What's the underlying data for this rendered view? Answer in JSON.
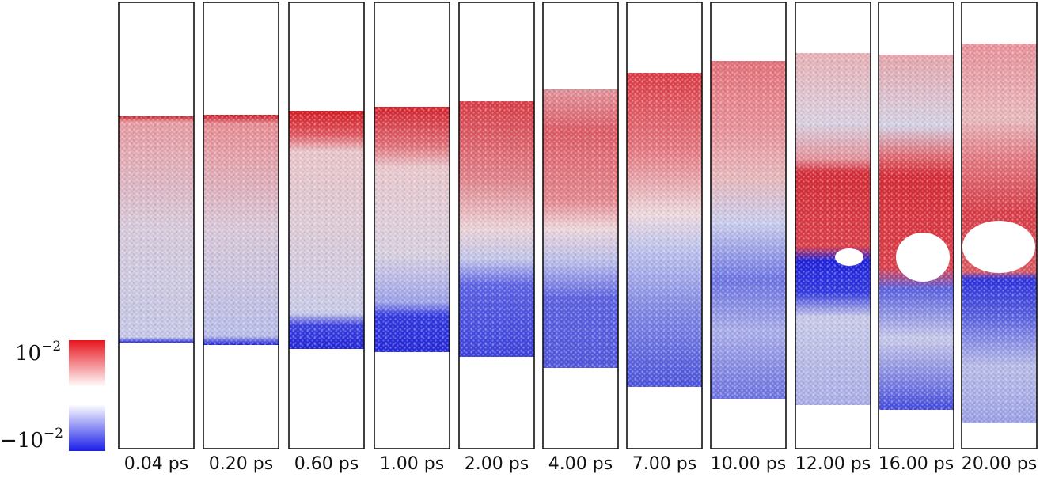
{
  "colorbar": {
    "max_base": "10",
    "max_exp": "−2",
    "min_base": "−10",
    "min_exp": "−2",
    "colors": {
      "high": "#e8141e",
      "mid": "#ffffff",
      "low": "#1a1ee8"
    }
  },
  "frames": [
    {
      "time": "0.04 ps"
    },
    {
      "time": "0.20 ps"
    },
    {
      "time": "0.60 ps"
    },
    {
      "time": "1.00 ps"
    },
    {
      "time": "2.00 ps"
    },
    {
      "time": "4.00 ps"
    },
    {
      "time": "7.00 ps"
    },
    {
      "time": "10.00 ps"
    },
    {
      "time": "12.00 ps"
    },
    {
      "time": "16.00 ps"
    },
    {
      "time": "20.00 ps"
    }
  ]
}
